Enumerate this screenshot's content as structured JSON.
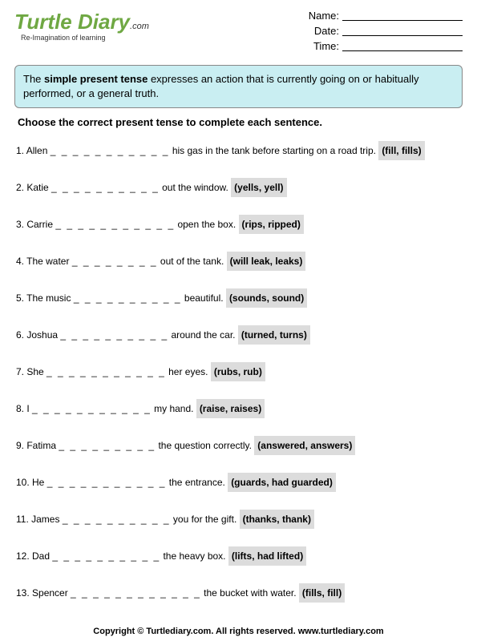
{
  "logo": {
    "main": "Turtle Diary",
    "suffix": ".com",
    "tagline": "Re-Imagination of learning"
  },
  "meta": {
    "name_label": "Name:",
    "date_label": "Date:",
    "time_label": "Time:"
  },
  "intro": {
    "prefix": "The ",
    "bold": "simple present tense",
    "rest": " expresses an action that is currently going on or habitually performed, or a general truth."
  },
  "instruction": "Choose the correct present tense to complete each sentence.",
  "questions": [
    {
      "n": "1.",
      "pre": "Allen ",
      "blank": "_ _ _ _ _ _ _ _ _ _ _",
      "post": " his gas in the tank before starting on a road trip. ",
      "choices": "(fill, fills)"
    },
    {
      "n": "2.",
      "pre": "Katie ",
      "blank": "_ _ _ _ _ _ _ _ _ _",
      "post": " out the window. ",
      "choices": "(yells, yell)"
    },
    {
      "n": "3.",
      "pre": "Carrie ",
      "blank": "_ _ _ _ _ _ _ _ _ _ _",
      "post": " open the box. ",
      "choices": "(rips, ripped)"
    },
    {
      "n": "4.",
      "pre": "The water ",
      "blank": "_ _ _ _ _ _ _ _",
      "post": " out of the tank. ",
      "choices": "(will leak, leaks)"
    },
    {
      "n": "5.",
      "pre": "The music ",
      "blank": "_ _ _ _ _ _ _ _ _ _",
      "post": " beautiful. ",
      "choices": "(sounds, sound)"
    },
    {
      "n": "6.",
      "pre": "Joshua ",
      "blank": "_ _ _ _ _ _ _ _ _ _",
      "post": " around the car. ",
      "choices": "(turned, turns)"
    },
    {
      "n": "7.",
      "pre": "She ",
      "blank": "_ _ _ _ _ _ _ _ _ _ _",
      "post": " her eyes. ",
      "choices": "(rubs, rub)"
    },
    {
      "n": "8.",
      "pre": "I ",
      "blank": "_ _ _ _ _ _ _ _ _ _ _",
      "post": " my hand. ",
      "choices": "(raise, raises)"
    },
    {
      "n": "9.",
      "pre": "Fatima ",
      "blank": "_ _ _ _ _ _ _ _ _",
      "post": " the question correctly. ",
      "choices": "(answered, answers)"
    },
    {
      "n": "10.",
      "pre": "He ",
      "blank": "_ _ _ _ _ _ _ _ _ _ _",
      "post": " the entrance. ",
      "choices": "(guards, had guarded)"
    },
    {
      "n": "11.",
      "pre": "James ",
      "blank": "_ _ _ _ _ _ _ _ _ _",
      "post": " you for the gift. ",
      "choices": "(thanks, thank)"
    },
    {
      "n": "12.",
      "pre": "Dad ",
      "blank": "_ _ _ _ _ _ _ _ _ _",
      "post": " the heavy box. ",
      "choices": "(lifts, had lifted)"
    },
    {
      "n": "13.",
      "pre": "Spencer ",
      "blank": "_ _ _ _ _ _ _ _ _ _ _ _",
      "post": " the bucket with water. ",
      "choices": "(fills, fill)"
    }
  ],
  "footer": "Copyright © Turtlediary.com. All rights reserved. www.turtlediary.com"
}
